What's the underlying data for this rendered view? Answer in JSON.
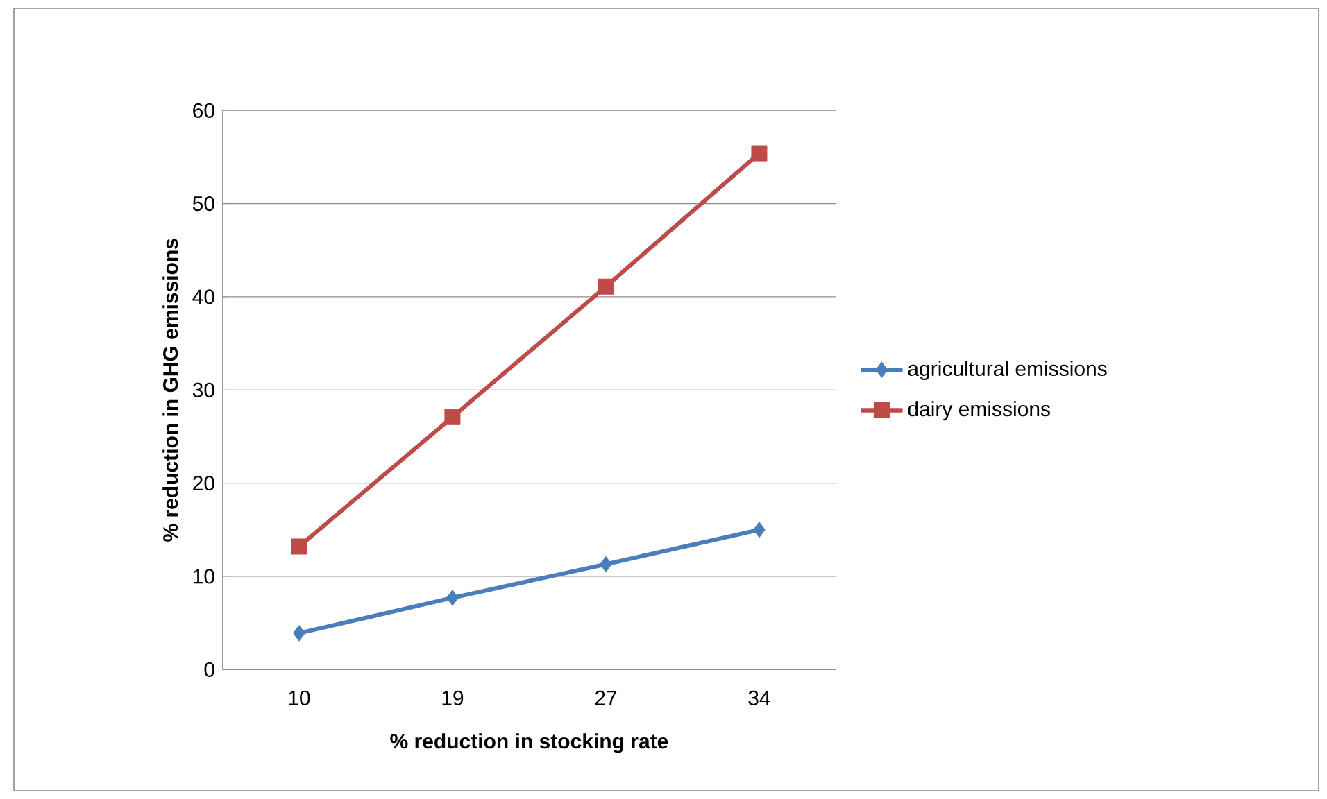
{
  "chart_data": {
    "type": "line",
    "xlabel": "% reduction in stocking rate",
    "ylabel": "% reduction in GHG emissions",
    "categories": [
      "10",
      "19",
      "27",
      "34"
    ],
    "series": [
      {
        "name": "agricultural emissions",
        "color": "#4a7ebb",
        "marker": "diamond",
        "values": [
          3.9,
          7.7,
          11.3,
          15.0
        ]
      },
      {
        "name": "dairy emissions",
        "color": "#be4b48",
        "marker": "square",
        "values": [
          13.2,
          27.1,
          41.1,
          55.4
        ]
      }
    ],
    "ylim": [
      0,
      60
    ],
    "yticks": [
      0,
      10,
      20,
      30,
      40,
      50,
      60
    ],
    "grid": "y",
    "legend": "right"
  }
}
